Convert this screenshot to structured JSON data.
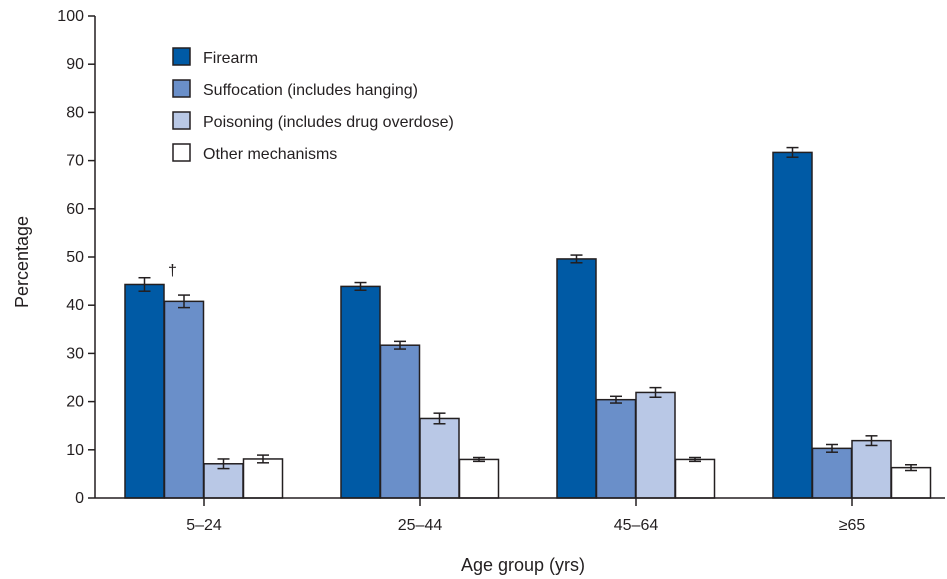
{
  "chart_data": {
    "type": "bar",
    "title": "",
    "xlabel": "Age group (yrs)",
    "ylabel": "Percentage",
    "ylim": [
      0,
      100
    ],
    "yticks": [
      0,
      10,
      20,
      30,
      40,
      50,
      60,
      70,
      80,
      90,
      100
    ],
    "grid": false,
    "legend_position": "top-left",
    "categories": [
      "5–24",
      "25–44",
      "45–64",
      "≥65"
    ],
    "series": [
      {
        "name": "Firearm",
        "color": "#005aa5",
        "values": [
          44.3,
          43.9,
          49.6,
          71.7
        ],
        "error": [
          1.4,
          0.8,
          0.8,
          1.0
        ]
      },
      {
        "name": "Suffocation (includes hanging)",
        "color": "#6a8fc9",
        "values": [
          40.8,
          31.7,
          20.4,
          10.3
        ],
        "error": [
          1.3,
          0.8,
          0.7,
          0.8
        ]
      },
      {
        "name": "Poisoning (includes drug overdose)",
        "color": "#b9c8e6",
        "values": [
          7.1,
          16.5,
          21.9,
          11.9
        ],
        "error": [
          1.0,
          1.1,
          1.0,
          1.0
        ]
      },
      {
        "name": "Other mechanisms",
        "color": "#ffffff",
        "values": [
          8.1,
          8.0,
          8.0,
          6.3
        ],
        "error": [
          0.8,
          0.4,
          0.4,
          0.6
        ]
      }
    ],
    "annotations": [
      {
        "text": "†",
        "category": "5–24",
        "series": "Firearm"
      }
    ]
  }
}
